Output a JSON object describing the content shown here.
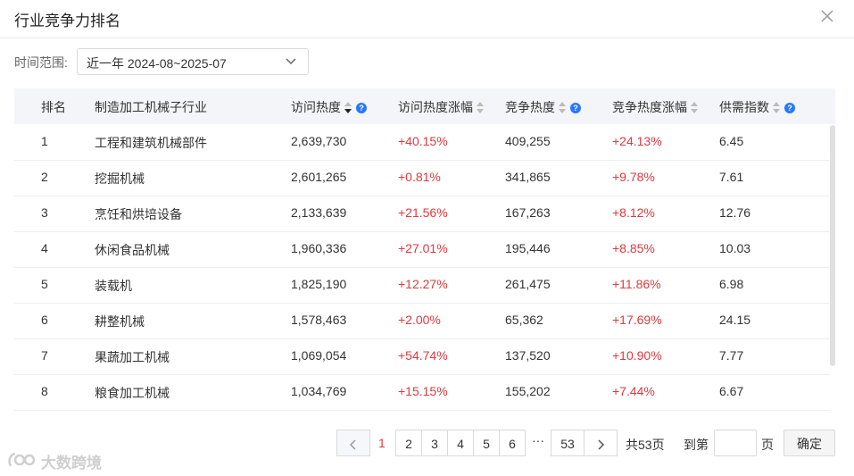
{
  "dialog": {
    "title": "行业竞争力排名"
  },
  "filter": {
    "label": "时间范围:",
    "value": "近一年 2024-08~2025-07"
  },
  "columns": [
    "排名",
    "制造加工机械子行业",
    "访问热度",
    "访问热度涨幅",
    "竞争热度",
    "竞争热度涨幅",
    "供需指数"
  ],
  "rows": [
    {
      "rank": "1",
      "name": "工程和建筑机械部件",
      "visit": "2,639,730",
      "visit_growth": "+40.15%",
      "comp": "409,255",
      "comp_growth": "+24.13%",
      "supply": "6.45"
    },
    {
      "rank": "2",
      "name": "挖掘机械",
      "visit": "2,601,265",
      "visit_growth": "+0.81%",
      "comp": "341,865",
      "comp_growth": "+9.78%",
      "supply": "7.61"
    },
    {
      "rank": "3",
      "name": "烹饪和烘培设备",
      "visit": "2,133,639",
      "visit_growth": "+21.56%",
      "comp": "167,263",
      "comp_growth": "+8.12%",
      "supply": "12.76"
    },
    {
      "rank": "4",
      "name": "休闲食品机械",
      "visit": "1,960,336",
      "visit_growth": "+27.01%",
      "comp": "195,446",
      "comp_growth": "+8.85%",
      "supply": "10.03"
    },
    {
      "rank": "5",
      "name": "装载机",
      "visit": "1,825,190",
      "visit_growth": "+12.27%",
      "comp": "261,475",
      "comp_growth": "+11.86%",
      "supply": "6.98"
    },
    {
      "rank": "6",
      "name": "耕整机械",
      "visit": "1,578,463",
      "visit_growth": "+2.00%",
      "comp": "65,362",
      "comp_growth": "+17.69%",
      "supply": "24.15"
    },
    {
      "rank": "7",
      "name": "果蔬加工机械",
      "visit": "1,069,054",
      "visit_growth": "+54.74%",
      "comp": "137,520",
      "comp_growth": "+10.90%",
      "supply": "7.77"
    },
    {
      "rank": "8",
      "name": "粮食加工机械",
      "visit": "1,034,769",
      "visit_growth": "+15.15%",
      "comp": "155,202",
      "comp_growth": "+7.44%",
      "supply": "6.67"
    }
  ],
  "pagination": {
    "current": "1",
    "pages": [
      "2",
      "3",
      "4",
      "5",
      "6"
    ],
    "ellipsis": "···",
    "last": "53",
    "total": "共53页",
    "goto_label": "到第",
    "page_unit": "页",
    "confirm": "确定"
  },
  "watermark": "大数跨境",
  "colors": {
    "accent_red": "#e0393e",
    "help_blue": "#2878ff",
    "header_bg": "#f3f5f9"
  }
}
